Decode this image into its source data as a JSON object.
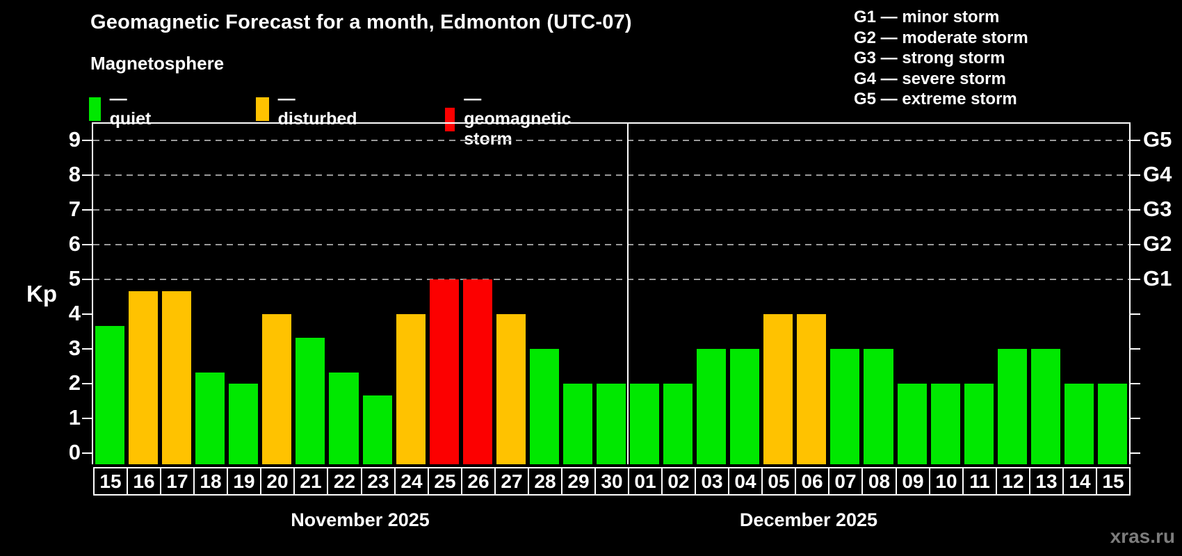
{
  "header": {
    "title": "Geomagnetic Forecast for a month, Edmonton (UTC-07)",
    "subtitle": "Magnetosphere"
  },
  "legend": {
    "items": [
      {
        "key": "quiet",
        "label": "— quiet",
        "color": "#00e800"
      },
      {
        "key": "disturbed",
        "label": "— disturbed",
        "color": "#ffc200"
      },
      {
        "key": "storm",
        "label": "— geomagnetic storm",
        "color": "#fc0000"
      }
    ]
  },
  "g_scale_legend": {
    "items": [
      "G1 — minor storm",
      "G2 — moderate storm",
      "G3 — strong storm",
      "G4 — severe storm",
      "G5 — extreme storm"
    ]
  },
  "watermark": "xras.ru",
  "chart_data": {
    "type": "bar",
    "title": "Geomagnetic Forecast for a month, Edmonton (UTC-07)",
    "ylabel": "Kp",
    "xlabel": "",
    "ylim": [
      0,
      9.5
    ],
    "y_ticks": [
      0,
      1,
      2,
      3,
      4,
      5,
      6,
      7,
      8,
      9
    ],
    "gridlines_at_kp": [
      5,
      6,
      7,
      8,
      9
    ],
    "grid": "horizontal dashed",
    "right_axis_labels": [
      {
        "kp": 5,
        "label": "G1"
      },
      {
        "kp": 6,
        "label": "G2"
      },
      {
        "kp": 7,
        "label": "G3"
      },
      {
        "kp": 8,
        "label": "G4"
      },
      {
        "kp": 9,
        "label": "G5"
      }
    ],
    "status_colors": {
      "quiet": "#00e800",
      "disturbed": "#ffc200",
      "storm": "#fc0000"
    },
    "months": [
      {
        "label": "November 2025",
        "bars": [
          {
            "day": "15",
            "kp": 3.67,
            "status": "quiet"
          },
          {
            "day": "16",
            "kp": 4.67,
            "status": "disturbed"
          },
          {
            "day": "17",
            "kp": 4.67,
            "status": "disturbed"
          },
          {
            "day": "18",
            "kp": 2.33,
            "status": "quiet"
          },
          {
            "day": "19",
            "kp": 2,
            "status": "quiet"
          },
          {
            "day": "20",
            "kp": 4,
            "status": "disturbed"
          },
          {
            "day": "21",
            "kp": 3.33,
            "status": "quiet"
          },
          {
            "day": "22",
            "kp": 2.33,
            "status": "quiet"
          },
          {
            "day": "23",
            "kp": 1.67,
            "status": "quiet"
          },
          {
            "day": "24",
            "kp": 4,
            "status": "disturbed"
          },
          {
            "day": "25",
            "kp": 5,
            "status": "storm"
          },
          {
            "day": "26",
            "kp": 5,
            "status": "storm"
          },
          {
            "day": "27",
            "kp": 4,
            "status": "disturbed"
          },
          {
            "day": "28",
            "kp": 3,
            "status": "quiet"
          },
          {
            "day": "29",
            "kp": 2,
            "status": "quiet"
          },
          {
            "day": "30",
            "kp": 2,
            "status": "quiet"
          }
        ]
      },
      {
        "label": "December 2025",
        "bars": [
          {
            "day": "01",
            "kp": 2,
            "status": "quiet"
          },
          {
            "day": "02",
            "kp": 2,
            "status": "quiet"
          },
          {
            "day": "03",
            "kp": 3,
            "status": "quiet"
          },
          {
            "day": "04",
            "kp": 3,
            "status": "quiet"
          },
          {
            "day": "05",
            "kp": 4,
            "status": "disturbed"
          },
          {
            "day": "06",
            "kp": 4,
            "status": "disturbed"
          },
          {
            "day": "07",
            "kp": 3,
            "status": "quiet"
          },
          {
            "day": "08",
            "kp": 3,
            "status": "quiet"
          },
          {
            "day": "09",
            "kp": 2,
            "status": "quiet"
          },
          {
            "day": "10",
            "kp": 2,
            "status": "quiet"
          },
          {
            "day": "11",
            "kp": 2,
            "status": "quiet"
          },
          {
            "day": "12",
            "kp": 3,
            "status": "quiet"
          },
          {
            "day": "13",
            "kp": 3,
            "status": "quiet"
          },
          {
            "day": "14",
            "kp": 2,
            "status": "quiet"
          },
          {
            "day": "15",
            "kp": 2,
            "status": "quiet"
          }
        ]
      }
    ]
  }
}
